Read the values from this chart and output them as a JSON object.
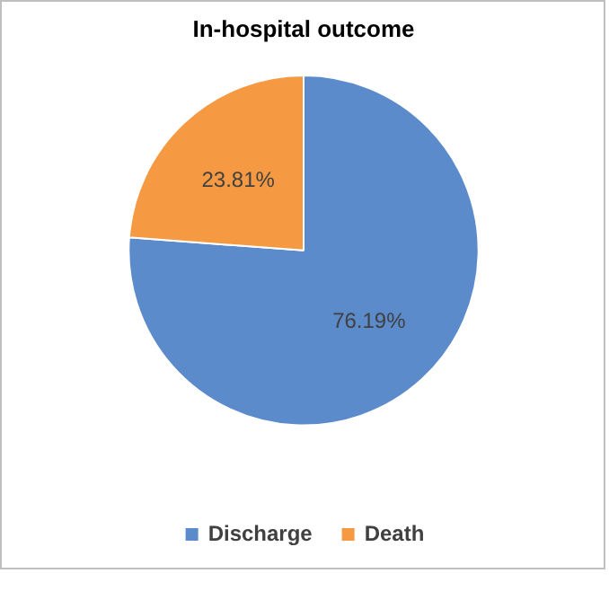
{
  "chart_data": {
    "type": "pie",
    "title": "In-hospital outcome",
    "categories": [
      "Discharge",
      "Death"
    ],
    "values": [
      76.19,
      23.81
    ],
    "colors": [
      "#5b8bcb",
      "#f59a42"
    ],
    "value_labels": [
      "76.19%",
      "23.81%"
    ],
    "legend": "bottom"
  }
}
